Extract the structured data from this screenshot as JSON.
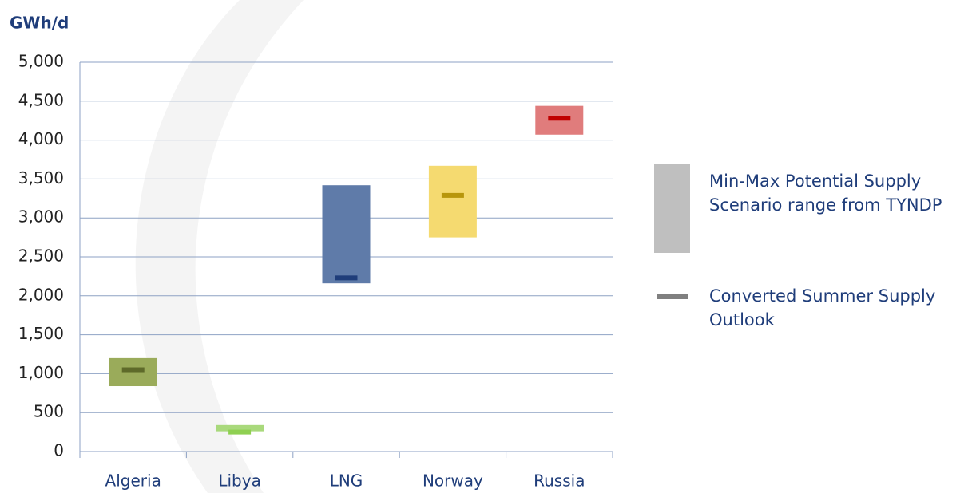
{
  "chart_data": {
    "type": "range",
    "y_label": "GWh/d",
    "categories": [
      "Algeria",
      "Libya",
      "LNG",
      "Norway",
      "Russia"
    ],
    "series": [
      {
        "name": "Min-Max Potential Supply Scenario range from TYNDP",
        "color": "#bfbfbf",
        "low": [
          840,
          260,
          2160,
          2750,
          4070
        ],
        "high": [
          1200,
          340,
          3420,
          3670,
          4440
        ],
        "colors": [
          "#9aab5a",
          "#a9d97c",
          "#5f7ba9",
          "#f5da70",
          "#e07c7c"
        ]
      },
      {
        "name": "Converted Summer Supply Outlook",
        "color": "#808080",
        "values": [
          1050,
          250,
          2230,
          3290,
          4280
        ],
        "colors": [
          "#5e6a2a",
          "#8fd052",
          "#1f3d7a",
          "#b8960c",
          "#c00000"
        ]
      }
    ],
    "ylim": [
      0,
      5000
    ],
    "yticks": [
      0,
      500,
      {
        "value": 1000,
        "label": "1,000"
      },
      {
        "value": 1500,
        "label": "1,500"
      },
      {
        "value": 2000,
        "label": "2,000"
      },
      {
        "value": 2500,
        "label": "2,500"
      },
      {
        "value": 3000,
        "label": "3,000"
      },
      {
        "value": 3500,
        "label": "3,500"
      },
      {
        "value": 4000,
        "label": "4,000"
      },
      {
        "value": 4500,
        "label": "4,500"
      },
      {
        "value": 5000,
        "label": "5,000"
      }
    ],
    "grid": true
  }
}
